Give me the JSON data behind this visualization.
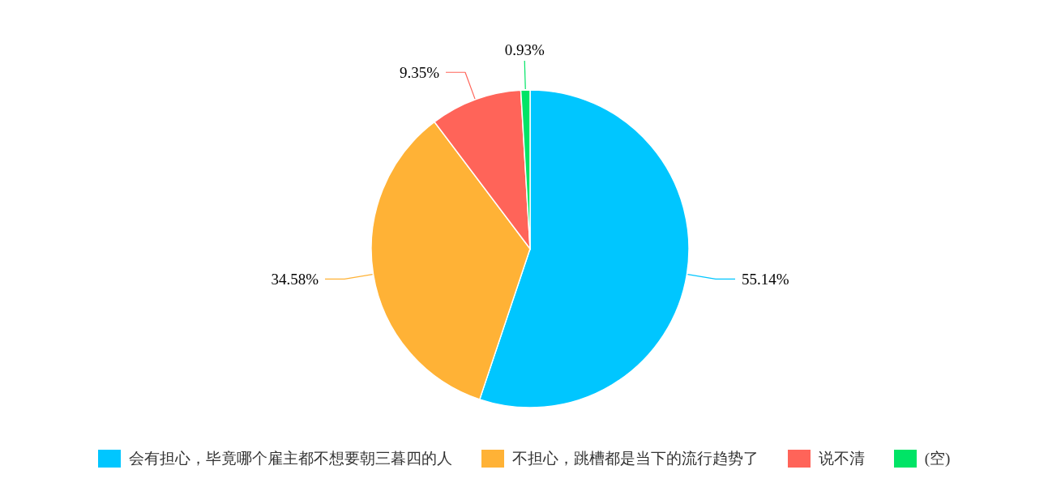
{
  "chart_data": {
    "type": "pie",
    "categories": [
      "会有担心，毕竟哪个雇主都不想要朝三暮四的人",
      "不担心，跳槽都是当下的流行趋势了",
      "说不清",
      "(空)"
    ],
    "values": [
      55.14,
      34.58,
      9.35,
      0.93
    ],
    "value_labels": [
      "55.14%",
      "34.58%",
      "9.35%",
      "0.93%"
    ],
    "colors": [
      "#00c6ff",
      "#ffb236",
      "#ff6459",
      "#00e466"
    ],
    "legend": "bottom"
  }
}
